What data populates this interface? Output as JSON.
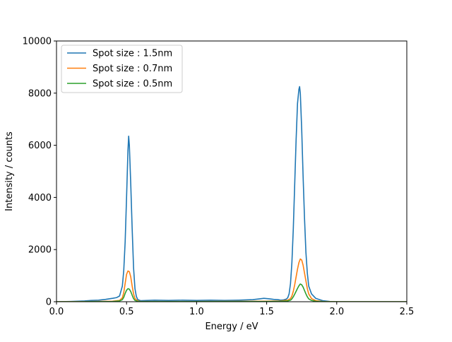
{
  "chart_data": {
    "type": "line",
    "xlabel": "Energy / eV",
    "ylabel": "Intensity / counts",
    "xlim": [
      0.0,
      2.5
    ],
    "ylim": [
      0,
      10000
    ],
    "xticks": [
      0.0,
      0.5,
      1.0,
      1.5,
      2.0,
      2.5
    ],
    "xtick_labels": [
      "0.0",
      "0.5",
      "1.0",
      "1.5",
      "2.0",
      "2.5"
    ],
    "yticks": [
      0,
      2000,
      4000,
      6000,
      8000,
      10000
    ],
    "ytick_labels": [
      "0",
      "2000",
      "4000",
      "6000",
      "8000",
      "10000"
    ],
    "grid": false,
    "legend_position": "top-left",
    "series": [
      {
        "name": "Spot size : 1.5nm",
        "color": "#1f77b4",
        "x": [
          0.0,
          0.1,
          0.2,
          0.25,
          0.3,
          0.35,
          0.4,
          0.43,
          0.45,
          0.47,
          0.48,
          0.49,
          0.5,
          0.51,
          0.515,
          0.52,
          0.53,
          0.54,
          0.55,
          0.56,
          0.57,
          0.58,
          0.6,
          0.65,
          0.7,
          0.8,
          0.9,
          1.0,
          1.1,
          1.2,
          1.3,
          1.4,
          1.45,
          1.48,
          1.5,
          1.52,
          1.55,
          1.58,
          1.6,
          1.62,
          1.64,
          1.65,
          1.66,
          1.67,
          1.68,
          1.69,
          1.7,
          1.71,
          1.72,
          1.73,
          1.735,
          1.74,
          1.75,
          1.76,
          1.77,
          1.78,
          1.79,
          1.8,
          1.82,
          1.85,
          1.9,
          1.95,
          2.0,
          2.1,
          2.2,
          2.3,
          2.4,
          2.5
        ],
        "y": [
          0,
          10,
          30,
          50,
          60,
          90,
          130,
          160,
          220,
          600,
          1200,
          2300,
          4000,
          5800,
          6350,
          6000,
          4500,
          2800,
          1300,
          500,
          200,
          80,
          40,
          50,
          60,
          50,
          60,
          50,
          60,
          50,
          60,
          80,
          110,
          130,
          120,
          110,
          90,
          80,
          60,
          70,
          100,
          150,
          300,
          700,
          1500,
          2800,
          4500,
          6200,
          7600,
          8150,
          8250,
          8000,
          6600,
          4800,
          3200,
          1900,
          1100,
          600,
          300,
          130,
          40,
          10,
          0,
          0,
          0,
          0,
          0,
          0
        ]
      },
      {
        "name": "Spot size : 0.7nm",
        "color": "#ff7f0e",
        "x": [
          0.0,
          0.2,
          0.4,
          0.45,
          0.47,
          0.48,
          0.49,
          0.5,
          0.51,
          0.52,
          0.53,
          0.54,
          0.55,
          0.56,
          0.58,
          0.6,
          1.0,
          1.5,
          1.6,
          1.65,
          1.67,
          1.68,
          1.69,
          1.7,
          1.71,
          1.72,
          1.73,
          1.74,
          1.75,
          1.76,
          1.77,
          1.78,
          1.79,
          1.8,
          1.82,
          1.85,
          1.9,
          2.0,
          2.5
        ],
        "y": [
          0,
          5,
          20,
          50,
          150,
          350,
          700,
          1050,
          1180,
          1150,
          950,
          600,
          300,
          120,
          30,
          10,
          10,
          20,
          30,
          60,
          120,
          220,
          400,
          650,
          950,
          1250,
          1500,
          1640,
          1600,
          1400,
          1100,
          800,
          500,
          300,
          120,
          40,
          10,
          0,
          0
        ]
      },
      {
        "name": "Spot size : 0.5nm",
        "color": "#2ca02c",
        "x": [
          0.0,
          0.2,
          0.4,
          0.45,
          0.47,
          0.48,
          0.49,
          0.5,
          0.51,
          0.52,
          0.53,
          0.54,
          0.55,
          0.56,
          0.58,
          0.6,
          1.0,
          1.5,
          1.6,
          1.65,
          1.67,
          1.68,
          1.69,
          1.7,
          1.71,
          1.72,
          1.73,
          1.74,
          1.75,
          1.76,
          1.77,
          1.78,
          1.79,
          1.8,
          1.82,
          1.85,
          1.9,
          2.0,
          2.5
        ],
        "y": [
          0,
          3,
          10,
          30,
          80,
          170,
          320,
          440,
          500,
          480,
          390,
          250,
          120,
          50,
          15,
          5,
          5,
          10,
          15,
          30,
          60,
          110,
          190,
          290,
          400,
          510,
          610,
          680,
          650,
          560,
          430,
          300,
          190,
          110,
          50,
          15,
          5,
          0,
          0
        ]
      }
    ]
  }
}
